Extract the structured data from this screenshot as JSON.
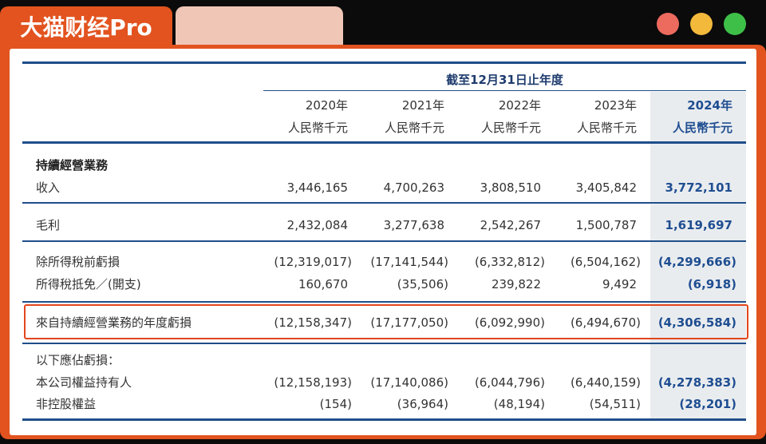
{
  "header": {
    "brand": "大猫财经Pro"
  },
  "table": {
    "period_header": "截至12月31日止年度",
    "columns": [
      {
        "year": "2020年",
        "unit": "人民幣千元"
      },
      {
        "year": "2021年",
        "unit": "人民幣千元"
      },
      {
        "year": "2022年",
        "unit": "人民幣千元"
      },
      {
        "year": "2023年",
        "unit": "人民幣千元"
      },
      {
        "year": "2024年",
        "unit": "人民幣千元"
      }
    ],
    "rows": [
      {
        "label": "持續經營業務"
      },
      {
        "label": "收入",
        "values": [
          "3,446,165",
          "4,700,263",
          "3,808,510",
          "3,405,842",
          "3,772,101"
        ]
      },
      {
        "label": "毛利",
        "values": [
          "2,432,084",
          "3,277,638",
          "2,542,267",
          "1,500,787",
          "1,619,697"
        ]
      },
      {
        "label": "除所得稅前虧損",
        "values": [
          "(12,319,017)",
          "(17,141,544)",
          "(6,332,812)",
          "(6,504,162)",
          "(4,299,666)"
        ]
      },
      {
        "label": "所得稅抵免／(開支)",
        "values": [
          "160,670",
          "(35,506)",
          "239,822",
          "9,492",
          "(6,918)"
        ]
      },
      {
        "label": "來自持續經營業務的年度虧損",
        "values": [
          "(12,158,347)",
          "(17,177,050)",
          "(6,092,990)",
          "(6,494,670)",
          "(4,306,584)"
        ]
      },
      {
        "label": "以下應佔虧損："
      },
      {
        "label": "本公司權益持有人",
        "values": [
          "(12,158,193)",
          "(17,140,086)",
          "(6,044,796)",
          "(6,440,159)",
          "(4,278,383)"
        ]
      },
      {
        "label": "非控股權益",
        "values": [
          "(154)",
          "(36,964)",
          "(48,194)",
          "(54,511)",
          "(28,201)"
        ]
      }
    ]
  }
}
